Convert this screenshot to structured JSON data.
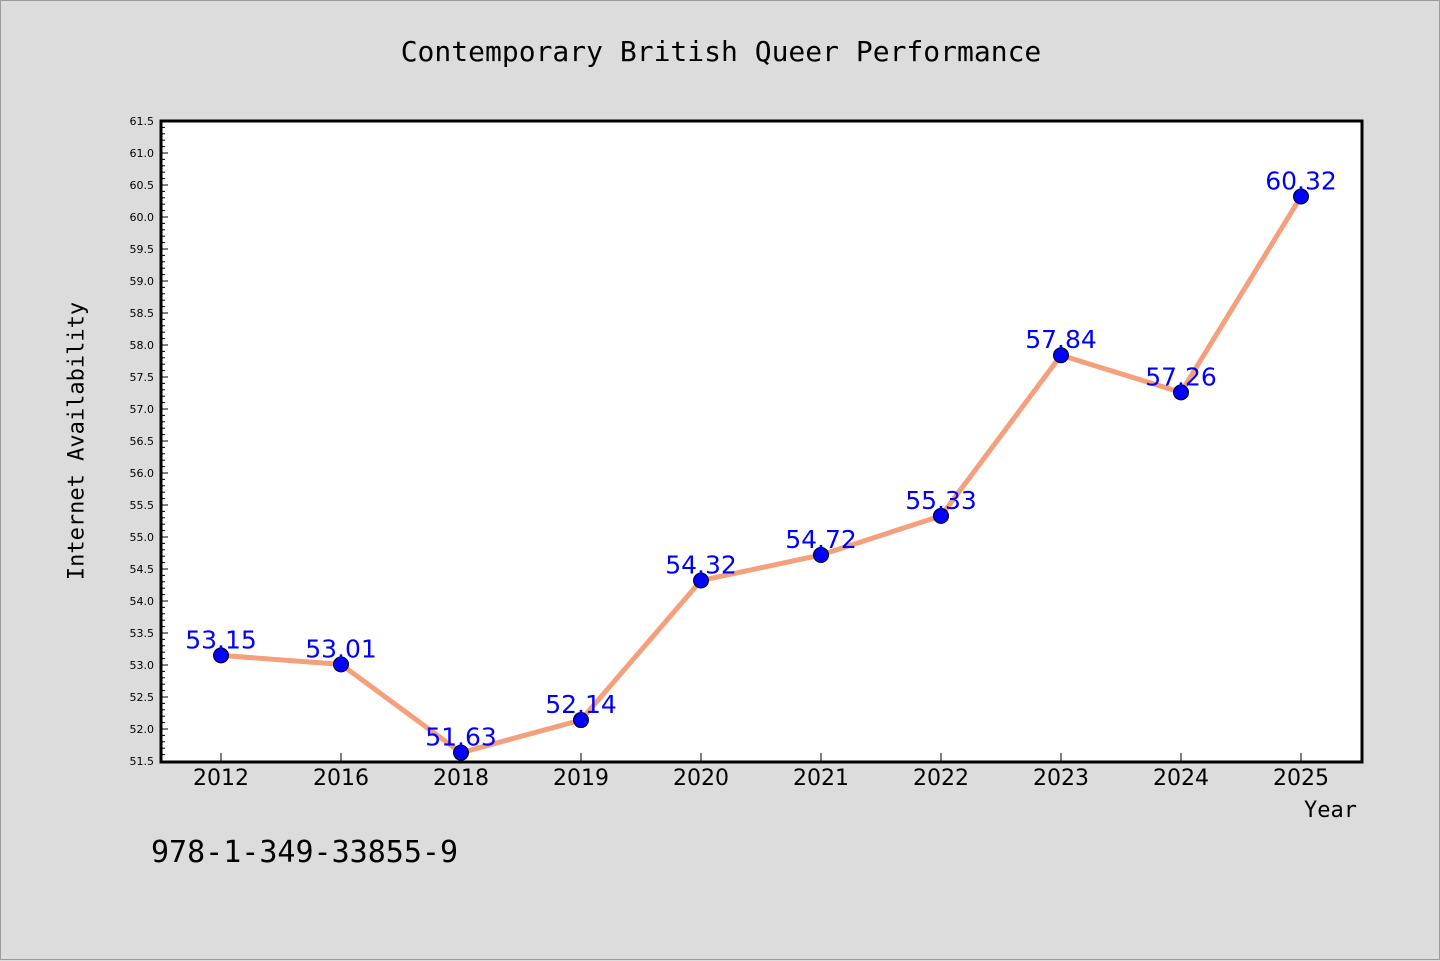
{
  "chart_data": {
    "type": "line",
    "title": "Contemporary British Queer Performance",
    "xlabel": "Year",
    "ylabel": "Internet Availability",
    "categories": [
      "2012",
      "2016",
      "2018",
      "2019",
      "2020",
      "2021",
      "2022",
      "2023",
      "2024",
      "2025"
    ],
    "series": [
      {
        "values": [
          53.15,
          53.01,
          51.63,
          52.14,
          54.32,
          54.72,
          55.33,
          57.84,
          57.26,
          60.32
        ],
        "line_color": "#f4a07c",
        "marker_color": "#0000ff"
      }
    ],
    "data_labels": [
      "53.15",
      "53.01",
      "51.63",
      "52.14",
      "54.32",
      "54.72",
      "55.33",
      "57.84",
      "57.26",
      "60.32"
    ],
    "ylim": [
      51.5,
      61.5
    ],
    "yticks": [
      "51.5",
      "52.0",
      "52.5",
      "53.0",
      "53.5",
      "54.0",
      "54.5",
      "55.0",
      "55.5",
      "56.0",
      "56.5",
      "57.0",
      "57.5",
      "58.0",
      "58.5",
      "59.0",
      "59.5",
      "60.0",
      "60.5",
      "61.0",
      "61.5"
    ],
    "grid": false,
    "legend": "none"
  },
  "footer": {
    "code": "978-1-349-33855-9"
  }
}
